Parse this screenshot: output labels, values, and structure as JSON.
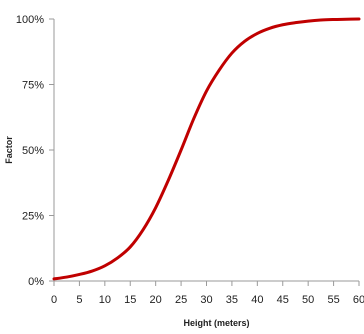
{
  "chart_data": {
    "type": "line",
    "xlabel": "Height (meters)",
    "ylabel": "Factor",
    "xlim": [
      0,
      60
    ],
    "ylim": [
      0,
      100
    ],
    "x_ticks": [
      0,
      5,
      10,
      15,
      20,
      25,
      30,
      35,
      40,
      45,
      50,
      55,
      60
    ],
    "y_ticks": [
      0,
      25,
      50,
      75,
      100
    ],
    "y_tick_labels": [
      "0%",
      "25%",
      "50%",
      "75%",
      "100%"
    ],
    "grid": false,
    "series": [
      {
        "color": "#c00000",
        "x": [
          0,
          2.5,
          5,
          7.5,
          10,
          12.5,
          15,
          17.5,
          20,
          22.5,
          25,
          27.5,
          30,
          32.5,
          35,
          37.5,
          40,
          42.5,
          45,
          47.5,
          50,
          52.5,
          55,
          57.5,
          60
        ],
        "y": [
          0.8,
          1.5,
          2.5,
          3.8,
          5.8,
          8.8,
          13,
          19.5,
          28,
          38.5,
          50,
          62,
          72.5,
          80.5,
          87,
          91.5,
          94.5,
          96.5,
          97.8,
          98.6,
          99.2,
          99.6,
          99.8,
          99.9,
          100
        ]
      }
    ]
  }
}
